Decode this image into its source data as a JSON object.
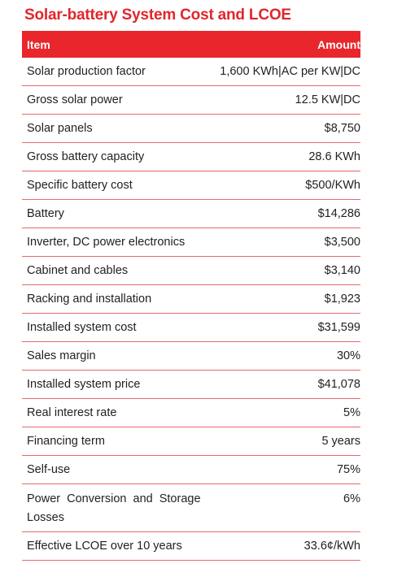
{
  "title": "Solar-battery System Cost and LCOE",
  "table": {
    "headers": {
      "item": "Item",
      "amount": "Amount"
    },
    "rows": [
      {
        "item": "Solar production factor",
        "amount": "1,600 KWh|AC per KW|DC"
      },
      {
        "item": "Gross solar power",
        "amount": "12.5 KW|DC"
      },
      {
        "item": "Solar panels",
        "amount": "$8,750"
      },
      {
        "item": "Gross battery capacity",
        "amount": "28.6 KWh"
      },
      {
        "item": "Specific battery cost",
        "amount": "$500/KWh"
      },
      {
        "item": "Battery",
        "amount": "$14,286"
      },
      {
        "item": "Inverter, DC power electronics",
        "amount": "$3,500"
      },
      {
        "item": "Cabinet and cables",
        "amount": "$3,140"
      },
      {
        "item": "Racking and installation",
        "amount": "$1,923"
      },
      {
        "item": "Installed system cost",
        "amount": "$31,599"
      },
      {
        "item": "Sales margin",
        "amount": "30%"
      },
      {
        "item": "Installed system price",
        "amount": "$41,078"
      },
      {
        "item": "Real interest rate",
        "amount": "5%"
      },
      {
        "item": "Financing term",
        "amount": "5 years"
      },
      {
        "item": "Self-use",
        "amount": "75%"
      },
      {
        "item": "Power Conversion and Storage Losses",
        "amount": "6%"
      },
      {
        "item": "Effective LCOE over 10 years",
        "amount": "33.6¢/kWh"
      }
    ]
  }
}
